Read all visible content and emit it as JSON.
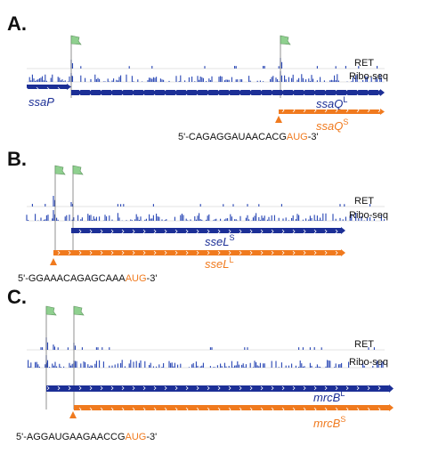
{
  "panels": [
    {
      "label": "A.",
      "tracks": [
        "RET",
        "Ribo-seq"
      ],
      "genes": [
        {
          "name": "ssaP"
        },
        {
          "name": "ssaQ",
          "sup": "L"
        },
        {
          "name": "ssaQ",
          "sup": "S"
        }
      ],
      "sequence": {
        "prefix": "5'-CAGAGGAUAACACG",
        "start_codon": "AUG",
        "suffix": "-3'"
      }
    },
    {
      "label": "B.",
      "tracks": [
        "RET",
        "Ribo-seq"
      ],
      "genes": [
        {
          "name": "sseL",
          "sup": "S"
        },
        {
          "name": "sseL",
          "sup": "L"
        }
      ],
      "sequence": {
        "prefix": "5'-GGAAACAGAGCAAA",
        "start_codon": "AUG",
        "suffix": "-3'"
      }
    },
    {
      "label": "C.",
      "tracks": [
        "RET",
        "Ribo-seq"
      ],
      "genes": [
        {
          "name": "mrcB",
          "sup": "L"
        },
        {
          "name": "mrcB",
          "sup": "S"
        }
      ],
      "sequence": {
        "prefix": "5'-AGGAUGAAGAACCG",
        "start_codon": "AUG",
        "suffix": "-3'"
      }
    }
  ]
}
